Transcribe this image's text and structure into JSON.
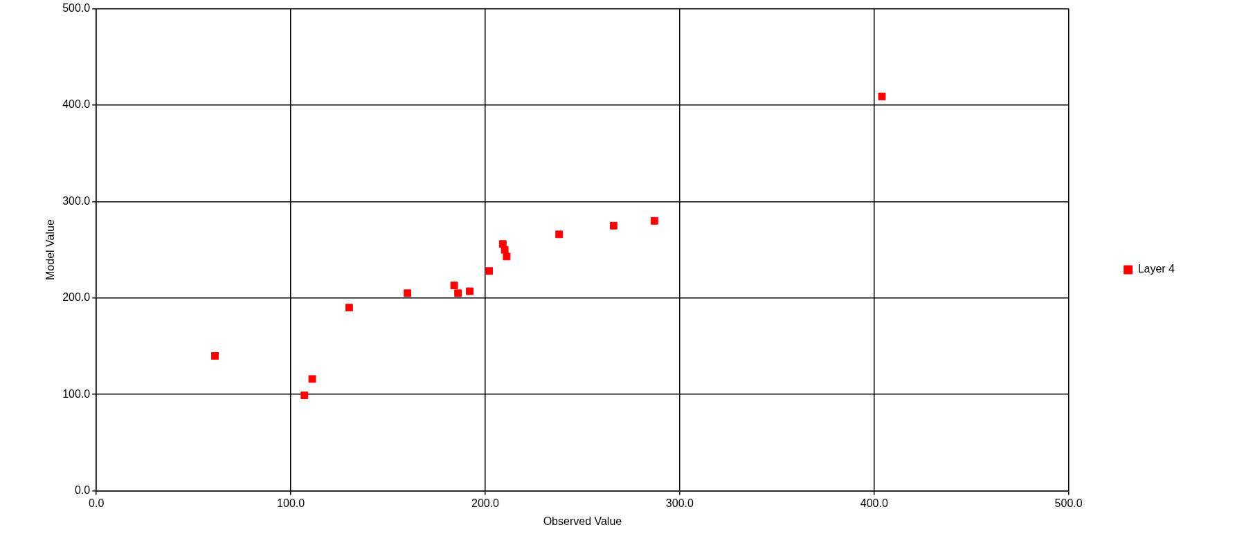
{
  "chart_data": {
    "type": "scatter",
    "xlabel": "Observed Value",
    "ylabel": "Model Value",
    "xlim": [
      0,
      500
    ],
    "ylim": [
      0,
      500
    ],
    "xticks": [
      {
        "value": 0,
        "label": "0.0"
      },
      {
        "value": 100,
        "label": "100.0"
      },
      {
        "value": 200,
        "label": "200.0"
      },
      {
        "value": 300,
        "label": "300.0"
      },
      {
        "value": 400,
        "label": "400.0"
      },
      {
        "value": 500,
        "label": "500.0"
      }
    ],
    "yticks": [
      {
        "value": 0,
        "label": "0.0"
      },
      {
        "value": 100,
        "label": "100.0"
      },
      {
        "value": 200,
        "label": "200.0"
      },
      {
        "value": 300,
        "label": "300.0"
      },
      {
        "value": 400,
        "label": "400.0"
      },
      {
        "value": 500,
        "label": "500.0"
      }
    ],
    "grid": true,
    "legend": "right",
    "marker": "square",
    "series": [
      {
        "name": "Layer 4",
        "color": "#ff0000",
        "x": [
          61,
          107,
          111,
          130,
          160,
          184,
          186,
          192,
          202,
          209,
          210,
          211,
          238,
          266,
          287,
          404
        ],
        "values": [
          140,
          99,
          116,
          190,
          205,
          213,
          205,
          207,
          228,
          256,
          250,
          243,
          266,
          275,
          280,
          409
        ]
      }
    ]
  }
}
